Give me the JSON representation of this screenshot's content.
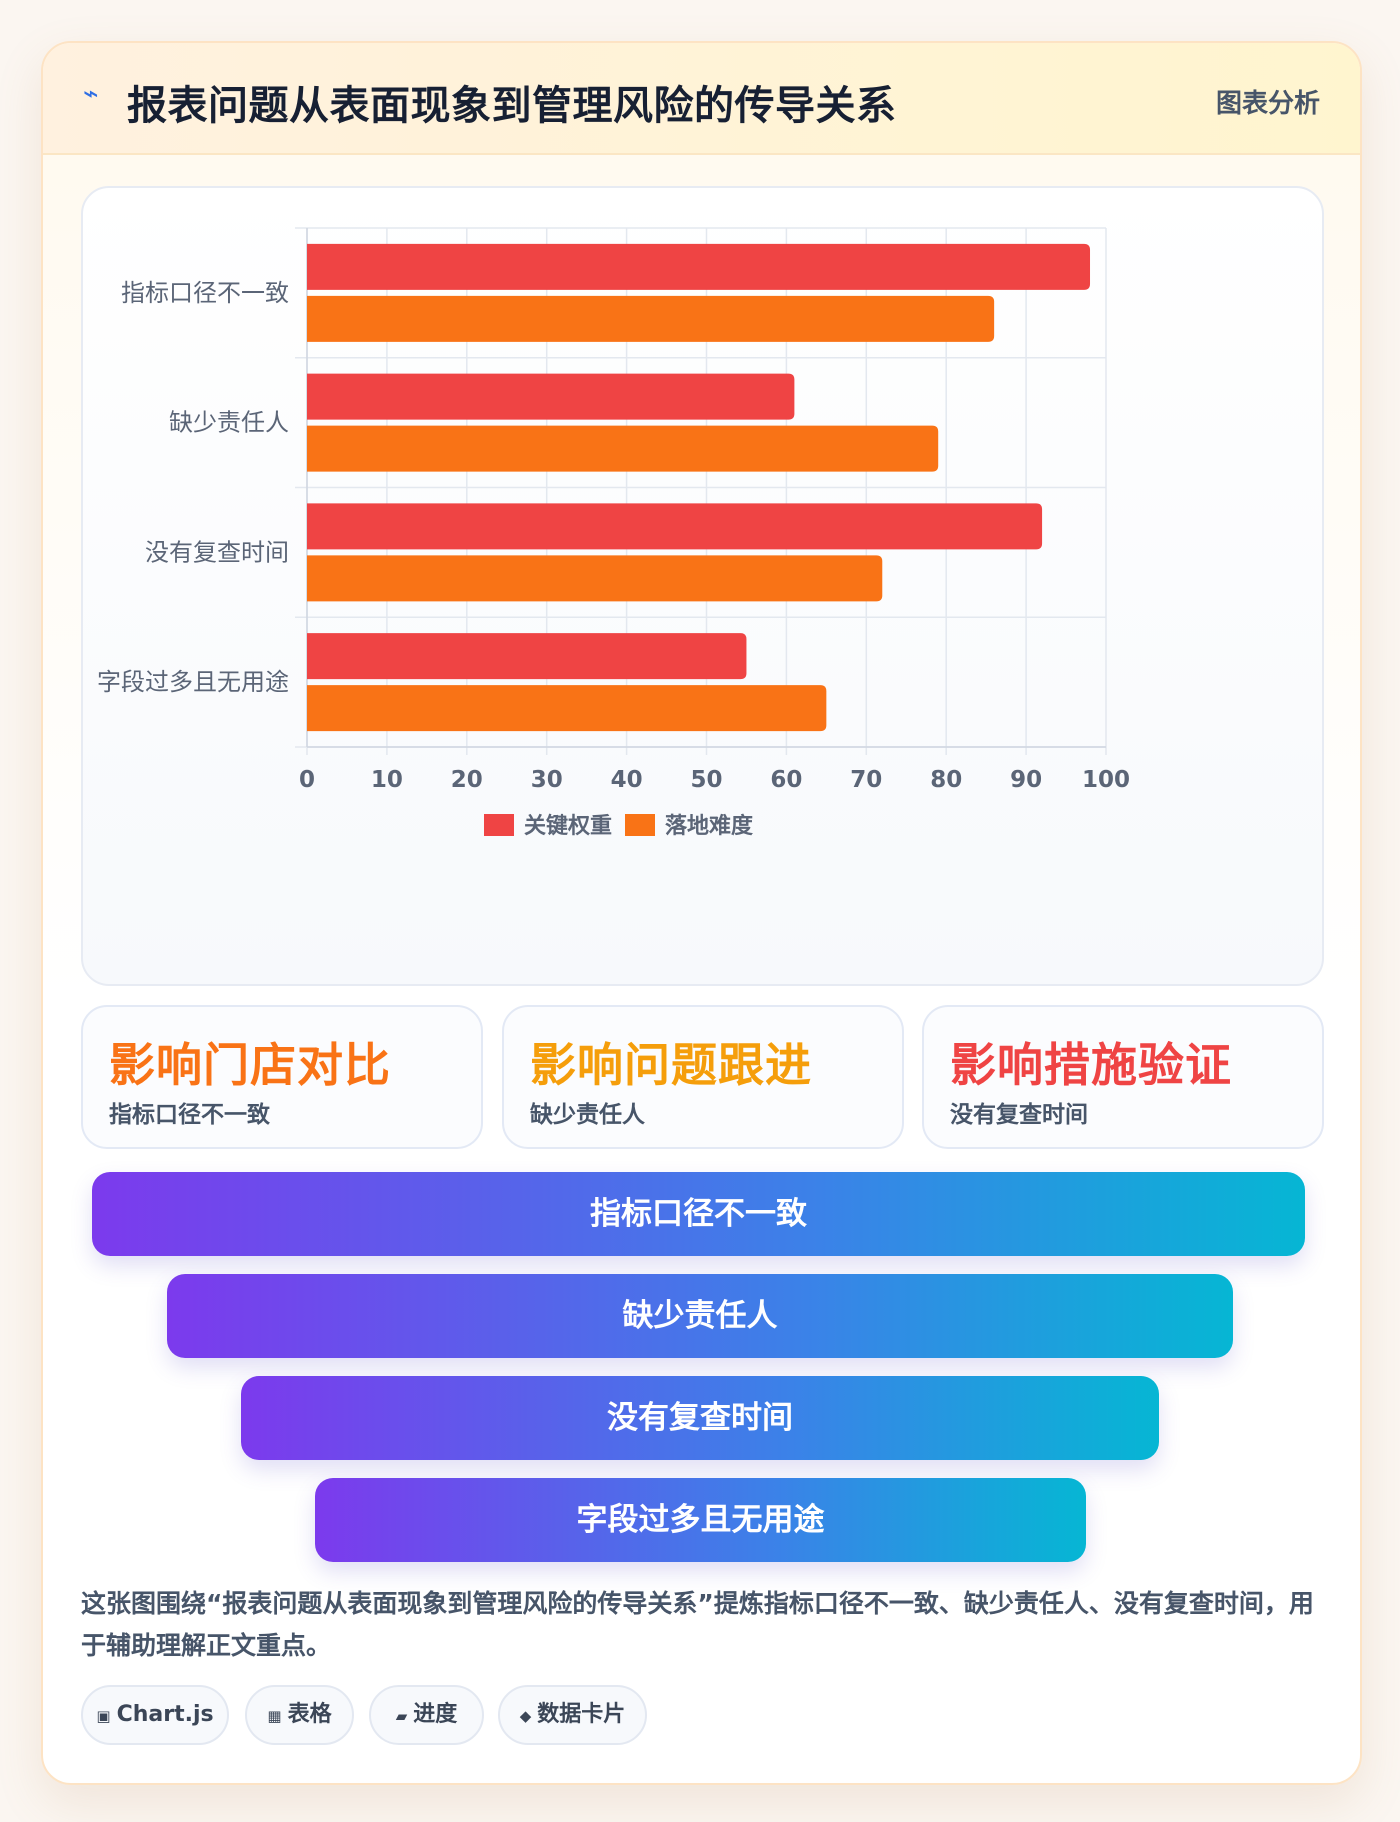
{
  "header": {
    "icon": "bolt-icon",
    "title": "报表问题从表面现象到管理风险的传导关系",
    "badge": "图表分析"
  },
  "chart_data": {
    "type": "bar",
    "orientation": "horizontal",
    "categories": [
      "指标口径不一致",
      "缺少责任人",
      "没有复查时间",
      "字段过多且无用途"
    ],
    "series": [
      {
        "name": "关键权重",
        "color": "#ef4444",
        "values": [
          98,
          61,
          92,
          55
        ]
      },
      {
        "name": "落地难度",
        "color": "#f97316",
        "values": [
          86,
          79,
          72,
          65
        ]
      }
    ],
    "xlim": [
      0,
      100
    ],
    "xticks": [
      0,
      10,
      20,
      30,
      40,
      50,
      60,
      70,
      80,
      90,
      100
    ],
    "grid": true,
    "legend": "bottom"
  },
  "stats": [
    {
      "title": "影响门店对比",
      "subtitle": "指标口径不一致",
      "color": "#f97316"
    },
    {
      "title": "影响问题跟进",
      "subtitle": "缺少责任人",
      "color": "#f59e0b"
    },
    {
      "title": "影响措施验证",
      "subtitle": "没有复查时间",
      "color": "#ef4444"
    }
  ],
  "funnel": [
    "指标口径不一致",
    "缺少责任人",
    "没有复查时间",
    "字段过多且无用途"
  ],
  "description": "这张图围绕“报表问题从表面现象到管理风险的传导关系”提炼指标口径不一致、缺少责任人、没有复查时间，用于辅助理解正文重点。",
  "tags": [
    {
      "icon": "chip-icon",
      "glyph": "▣",
      "label": "Chart.js"
    },
    {
      "icon": "table-icon",
      "glyph": "▦",
      "label": "表格"
    },
    {
      "icon": "progress-icon",
      "glyph": "▰",
      "label": "进度"
    },
    {
      "icon": "diamond-icon",
      "glyph": "◆",
      "label": "数据卡片"
    }
  ]
}
